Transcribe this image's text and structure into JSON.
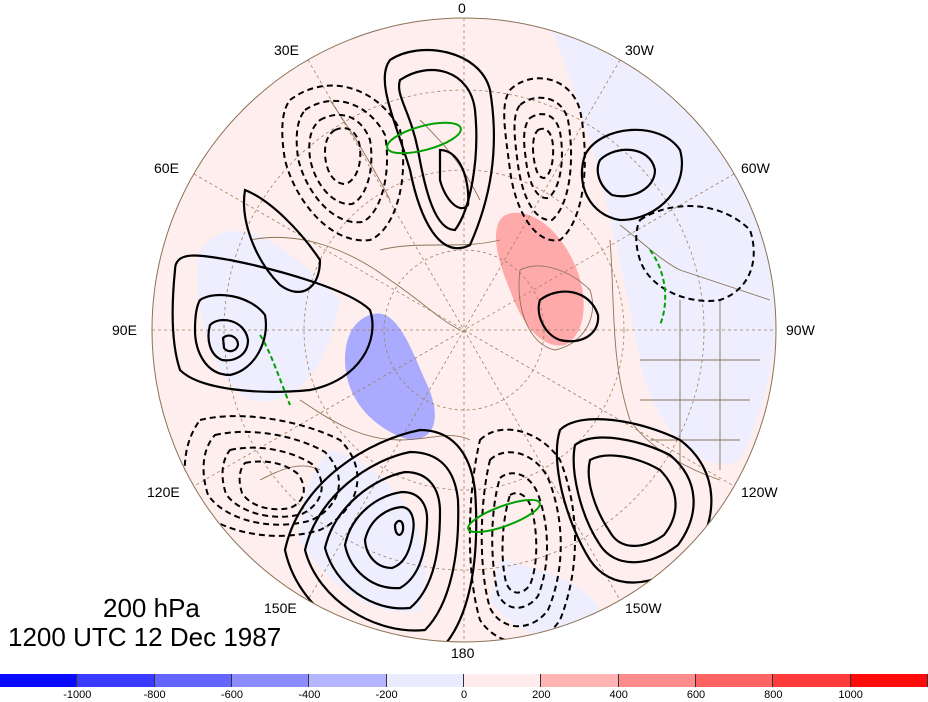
{
  "map": {
    "projection": "north-polar-stereographic",
    "longitude_labels": [
      "0",
      "30W",
      "60W",
      "90W",
      "120W",
      "150W",
      "180",
      "150E",
      "120E",
      "90E",
      "60E",
      "30E"
    ],
    "grid": true,
    "coastlines": true
  },
  "caption": {
    "level": "200 hPa",
    "time": "1200 UTC 12 Dec 1987"
  },
  "colorbar": {
    "tick_labels": [
      "-1000",
      "-800",
      "-600",
      "-400",
      "-200",
      "0",
      "200",
      "400",
      "600",
      "800",
      "1000"
    ],
    "colors": [
      "#0a0aff",
      "#3b3bff",
      "#6464ff",
      "#8c8cff",
      "#b4b4ff",
      "#ebebff",
      "#ffebeb",
      "#ffb4b4",
      "#ff8c8c",
      "#ff6464",
      "#ff3b3b",
      "#ff0a0a"
    ]
  },
  "legend_colors": {
    "positive_contour": "#000000",
    "negative_contour": "#000000",
    "highlight_contour": "#00a000",
    "coastline": "#8b7355",
    "gridline": "#a08060"
  }
}
